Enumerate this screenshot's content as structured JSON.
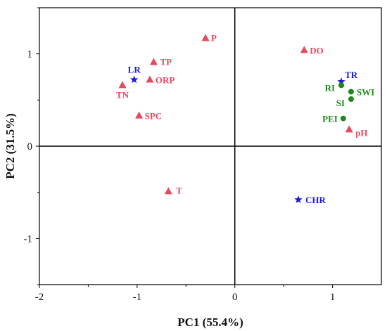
{
  "chart_data": {
    "type": "scatter",
    "xlabel": "PC1 (55.4%)",
    "ylabel": "PC2 (31.5%)",
    "xlim": [
      -2,
      1.5
    ],
    "ylim": [
      -1.5,
      1.5
    ],
    "xticks": [
      "-2",
      "-1",
      "0",
      "1"
    ],
    "yticks": [
      "-1",
      "0",
      "1"
    ],
    "grid": false,
    "reference_lines": {
      "x": 0,
      "y": 0
    },
    "colors": {
      "triangle": "#e8485e",
      "star": "#1c1cd6",
      "circle": "#1e8a1e",
      "axis": "#000000"
    },
    "series": [
      {
        "marker": "triangle",
        "points": [
          {
            "label": "P",
            "x": -0.3,
            "y": 1.17
          },
          {
            "label": "DO",
            "x": 0.71,
            "y": 1.04
          },
          {
            "label": "TP",
            "x": -0.83,
            "y": 0.91
          },
          {
            "label": "ORP",
            "x": -0.87,
            "y": 0.72
          },
          {
            "label": "TN",
            "x": -1.15,
            "y": 0.66
          },
          {
            "label": "SPC",
            "x": -0.98,
            "y": 0.33
          },
          {
            "label": "pH",
            "x": 1.17,
            "y": 0.18
          },
          {
            "label": "T",
            "x": -0.68,
            "y": -0.49
          }
        ]
      },
      {
        "marker": "star",
        "points": [
          {
            "label": "LR",
            "x": -1.03,
            "y": 0.72
          },
          {
            "label": "TR",
            "x": 1.09,
            "y": 0.7
          },
          {
            "label": "CHR",
            "x": 0.65,
            "y": -0.58
          }
        ]
      },
      {
        "marker": "circle",
        "points": [
          {
            "label": "RI",
            "x": 1.09,
            "y": 0.66
          },
          {
            "label": "SWI",
            "x": 1.19,
            "y": 0.59
          },
          {
            "label": "SI",
            "x": 1.19,
            "y": 0.51
          },
          {
            "label": "PEI",
            "x": 1.11,
            "y": 0.3
          }
        ]
      }
    ]
  }
}
